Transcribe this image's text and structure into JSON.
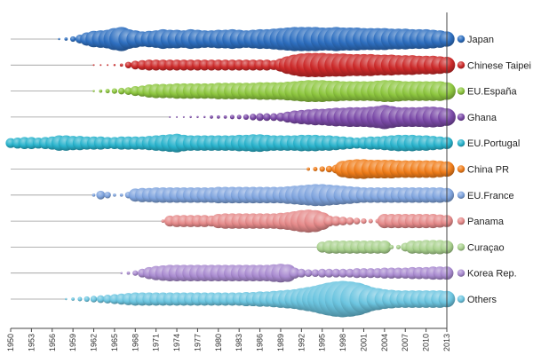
{
  "chart_data": {
    "type": "scatter",
    "title": "",
    "xlabel": "",
    "ylabel": "",
    "x_ticks": [
      1950,
      1953,
      1956,
      1959,
      1962,
      1965,
      1968,
      1971,
      1974,
      1977,
      1980,
      1983,
      1986,
      1989,
      1992,
      1995,
      1998,
      2001,
      2004,
      2007,
      2010,
      2013
    ],
    "xlim": [
      1950,
      2013
    ],
    "grid": false,
    "legend_position": "right",
    "series": [
      {
        "name": "Japan",
        "color": "#2e6fc0",
        "years": [
          1957,
          1958,
          1959,
          1960,
          1961,
          1962,
          1963,
          1964,
          1965,
          1966,
          1967,
          1968,
          1969,
          1970,
          1971,
          1972,
          1973,
          1974,
          1975,
          1976,
          1977,
          1978,
          1979,
          1980,
          1981,
          1982,
          1983,
          1984,
          1985,
          1986,
          1987,
          1988,
          1989,
          1990,
          1991,
          1992,
          1993,
          1994,
          1995,
          1996,
          1997,
          1998,
          1999,
          2000,
          2001,
          2002,
          2003,
          2004,
          2005,
          2006,
          2007,
          2008,
          2009,
          2010,
          2011,
          2012,
          2013
        ],
        "sizes": [
          2,
          3,
          5,
          8,
          12,
          15,
          16,
          17,
          20,
          22,
          18,
          16,
          14,
          15,
          16,
          18,
          17,
          17,
          16,
          18,
          17,
          16,
          16,
          17,
          17,
          18,
          17,
          16,
          17,
          18,
          18,
          19,
          20,
          21,
          22,
          22,
          22,
          22,
          21,
          21,
          22,
          21,
          21,
          21,
          20,
          20,
          20,
          20,
          19,
          19,
          19,
          18,
          18,
          18,
          17,
          16,
          14
        ]
      },
      {
        "name": "Chinese Taipei",
        "color": "#cc2a2a",
        "years": [
          1962,
          1963,
          1964,
          1965,
          1966,
          1967,
          1968,
          1969,
          1970,
          1971,
          1972,
          1973,
          1974,
          1975,
          1976,
          1977,
          1978,
          1979,
          1980,
          1981,
          1982,
          1983,
          1984,
          1985,
          1986,
          1987,
          1988,
          1989,
          1990,
          1991,
          1992,
          1993,
          1994,
          1995,
          1996,
          1997,
          1998,
          1999,
          2000,
          2001,
          2002,
          2003,
          2004,
          2005,
          2006,
          2007,
          2008,
          2009,
          2010,
          2011,
          2012,
          2013
        ],
        "sizes": [
          1,
          1,
          1,
          2,
          3,
          6,
          8,
          9,
          10,
          10,
          10,
          10,
          10,
          10,
          10,
          10,
          10,
          10,
          10,
          10,
          10,
          10,
          10,
          10,
          10,
          10,
          9,
          12,
          16,
          19,
          21,
          22,
          22,
          22,
          21,
          21,
          21,
          20,
          20,
          20,
          20,
          19,
          19,
          19,
          18,
          18,
          18,
          17,
          17,
          17,
          16,
          15
        ]
      },
      {
        "name": "EU.España",
        "color": "#8dc63f",
        "years": [
          1962,
          1963,
          1964,
          1965,
          1966,
          1967,
          1968,
          1969,
          1970,
          1971,
          1972,
          1973,
          1974,
          1975,
          1976,
          1977,
          1978,
          1979,
          1980,
          1981,
          1982,
          1983,
          1984,
          1985,
          1986,
          1987,
          1988,
          1989,
          1990,
          1991,
          1992,
          1993,
          1994,
          1995,
          1996,
          1997,
          1998,
          1999,
          2000,
          2001,
          2002,
          2003,
          2004,
          2005,
          2006,
          2007,
          2008,
          2009,
          2010,
          2011,
          2012,
          2013
        ],
        "sizes": [
          2,
          3,
          4,
          5,
          6,
          7,
          9,
          10,
          12,
          13,
          13,
          13,
          14,
          14,
          14,
          14,
          14,
          14,
          15,
          15,
          15,
          15,
          15,
          15,
          16,
          16,
          16,
          16,
          17,
          18,
          19,
          20,
          20,
          20,
          19,
          19,
          18,
          18,
          18,
          18,
          18,
          19,
          20,
          20,
          19,
          18,
          18,
          18,
          18,
          18,
          18,
          16
        ]
      },
      {
        "name": "Ghana",
        "color": "#7b4aa8",
        "years": [
          1973,
          1974,
          1975,
          1976,
          1977,
          1978,
          1979,
          1980,
          1981,
          1982,
          1983,
          1984,
          1985,
          1986,
          1987,
          1988,
          1989,
          1990,
          1991,
          1992,
          1993,
          1994,
          1995,
          1996,
          1997,
          1998,
          1999,
          2000,
          2001,
          2002,
          2003,
          2004,
          2005,
          2006,
          2007,
          2008,
          2009,
          2010,
          2011,
          2012,
          2013
        ],
        "sizes": [
          1,
          1,
          1,
          2,
          2,
          2,
          3,
          3,
          3,
          4,
          4,
          5,
          6,
          7,
          7,
          7,
          8,
          10,
          12,
          13,
          14,
          15,
          15,
          16,
          17,
          17,
          18,
          18,
          18,
          19,
          20,
          22,
          20,
          18,
          18,
          18,
          18,
          19,
          19,
          18,
          16
        ]
      },
      {
        "name": "EU.Portugal",
        "color": "#29b3cc",
        "years": [
          1950,
          1951,
          1952,
          1953,
          1954,
          1955,
          1956,
          1957,
          1958,
          1959,
          1960,
          1961,
          1962,
          1963,
          1964,
          1965,
          1966,
          1967,
          1968,
          1969,
          1970,
          1971,
          1972,
          1973,
          1974,
          1975,
          1976,
          1977,
          1978,
          1979,
          1980,
          1981,
          1982,
          1983,
          1984,
          1985,
          1986,
          1987,
          1988,
          1989,
          1990,
          1991,
          1992,
          1993,
          1994,
          1995,
          1996,
          1997,
          1998,
          1999,
          2000,
          2001,
          2002,
          2003,
          2004,
          2005,
          2006,
          2007,
          2008,
          2009,
          2010,
          2011,
          2012,
          2013
        ],
        "sizes": [
          9,
          10,
          11,
          11,
          10,
          11,
          12,
          14,
          14,
          13,
          13,
          12,
          12,
          12,
          11,
          11,
          12,
          12,
          12,
          12,
          13,
          14,
          15,
          16,
          17,
          15,
          14,
          14,
          14,
          14,
          14,
          14,
          14,
          15,
          15,
          16,
          16,
          15,
          14,
          14,
          14,
          14,
          15,
          15,
          15,
          14,
          14,
          13,
          12,
          11,
          10,
          11,
          12,
          12,
          13,
          14,
          15,
          15,
          15,
          14,
          14,
          13,
          12,
          11
        ]
      },
      {
        "name": "China PR",
        "color": "#f07d1a",
        "years": [
          1993,
          1994,
          1995,
          1996,
          1997,
          1998,
          1999,
          2000,
          2001,
          2002,
          2003,
          2004,
          2005,
          2006,
          2007,
          2008,
          2009,
          2010,
          2011,
          2012,
          2013
        ],
        "sizes": [
          3,
          4,
          5,
          6,
          8,
          15,
          17,
          18,
          18,
          17,
          17,
          17,
          17,
          16,
          16,
          16,
          16,
          16,
          16,
          15,
          14
        ]
      },
      {
        "name": "EU.France",
        "color": "#7fa4de",
        "years": [
          1962,
          1963,
          1964,
          1965,
          1966,
          1967,
          1968,
          1969,
          1970,
          1971,
          1972,
          1973,
          1974,
          1975,
          1976,
          1977,
          1978,
          1979,
          1980,
          1981,
          1982,
          1983,
          1984,
          1985,
          1986,
          1987,
          1988,
          1989,
          1990,
          1991,
          1992,
          1993,
          1994,
          1995,
          1996,
          1997,
          1998,
          1999,
          2000,
          2001,
          2002,
          2003,
          2004,
          2005,
          2006,
          2007,
          2008,
          2009,
          2010,
          2011,
          2012,
          2013
        ],
        "sizes": [
          3,
          8,
          6,
          3,
          3,
          6,
          12,
          13,
          13,
          14,
          14,
          14,
          14,
          14,
          14,
          14,
          14,
          14,
          15,
          15,
          15,
          15,
          15,
          15,
          15,
          15,
          15,
          15,
          16,
          17,
          18,
          19,
          20,
          20,
          19,
          18,
          17,
          16,
          15,
          14,
          14,
          14,
          14,
          14,
          14,
          14,
          14,
          14,
          14,
          14,
          14,
          13
        ]
      },
      {
        "name": "Panama",
        "color": "#e58a8a",
        "years": [
          1972,
          1973,
          1974,
          1975,
          1976,
          1977,
          1978,
          1979,
          1980,
          1981,
          1982,
          1983,
          1984,
          1985,
          1986,
          1987,
          1988,
          1989,
          1990,
          1991,
          1992,
          1993,
          1994,
          1995,
          1996,
          1997,
          1998,
          1999,
          2000,
          2001,
          2002,
          2003,
          2004,
          2005,
          2006,
          2007,
          2008,
          2009,
          2010,
          2011,
          2012,
          2013
        ],
        "sizes": [
          3,
          10,
          11,
          11,
          11,
          11,
          11,
          10,
          13,
          14,
          14,
          14,
          14,
          14,
          14,
          14,
          14,
          15,
          16,
          18,
          20,
          21,
          20,
          16,
          10,
          9,
          8,
          7,
          6,
          5,
          4,
          4,
          13,
          13,
          13,
          13,
          13,
          13,
          13,
          13,
          12,
          11
        ]
      },
      {
        "name": "Curaçao",
        "color": "#a9d18e",
        "years": [
          1995,
          1996,
          1997,
          1998,
          1999,
          2000,
          2001,
          2002,
          2003,
          2004,
          2005,
          2006,
          2007,
          2008,
          2009,
          2010,
          2011,
          2012,
          2013
        ],
        "sizes": [
          10,
          12,
          12,
          12,
          12,
          12,
          12,
          12,
          12,
          12,
          4,
          4,
          8,
          12,
          12,
          13,
          13,
          13,
          12
        ]
      },
      {
        "name": "Korea Rep.",
        "color": "#a98bd0",
        "years": [
          1966,
          1967,
          1968,
          1969,
          1970,
          1971,
          1972,
          1973,
          1974,
          1975,
          1976,
          1977,
          1978,
          1979,
          1980,
          1981,
          1982,
          1983,
          1984,
          1985,
          1986,
          1987,
          1988,
          1989,
          1990,
          1991,
          1992,
          1993,
          1994,
          1995,
          1996,
          1997,
          1998,
          1999,
          2000,
          2001,
          2002,
          2003,
          2004,
          2005,
          2006,
          2007,
          2008,
          2009,
          2010,
          2011,
          2012,
          2013
        ],
        "sizes": [
          2,
          3,
          5,
          8,
          11,
          13,
          14,
          15,
          15,
          15,
          15,
          15,
          15,
          15,
          15,
          15,
          15,
          15,
          15,
          15,
          15,
          15,
          16,
          17,
          16,
          10,
          8,
          7,
          7,
          8,
          8,
          8,
          8,
          8,
          9,
          9,
          9,
          9,
          10,
          10,
          10,
          10,
          11,
          11,
          11,
          12,
          12,
          12
        ]
      },
      {
        "name": "Others",
        "color": "#6cc5e0",
        "years": [
          1958,
          1959,
          1960,
          1961,
          1962,
          1963,
          1964,
          1965,
          1966,
          1967,
          1968,
          1969,
          1970,
          1971,
          1972,
          1973,
          1974,
          1975,
          1976,
          1977,
          1978,
          1979,
          1980,
          1981,
          1982,
          1983,
          1984,
          1985,
          1986,
          1987,
          1988,
          1989,
          1990,
          1991,
          1992,
          1993,
          1994,
          1995,
          1996,
          1997,
          1998,
          1999,
          2000,
          2001,
          2002,
          2003,
          2004,
          2005,
          2006,
          2007,
          2008,
          2009,
          2010,
          2011,
          2012,
          2013
        ],
        "sizes": [
          2,
          3,
          4,
          5,
          6,
          7,
          8,
          9,
          10,
          11,
          12,
          12,
          12,
          12,
          12,
          12,
          12,
          12,
          12,
          12,
          12,
          12,
          12,
          12,
          12,
          12,
          13,
          13,
          14,
          14,
          15,
          16,
          17,
          18,
          20,
          22,
          24,
          27,
          30,
          32,
          33,
          32,
          30,
          26,
          22,
          20,
          18,
          17,
          16,
          16,
          16,
          16,
          16,
          16,
          16,
          15
        ]
      }
    ]
  }
}
